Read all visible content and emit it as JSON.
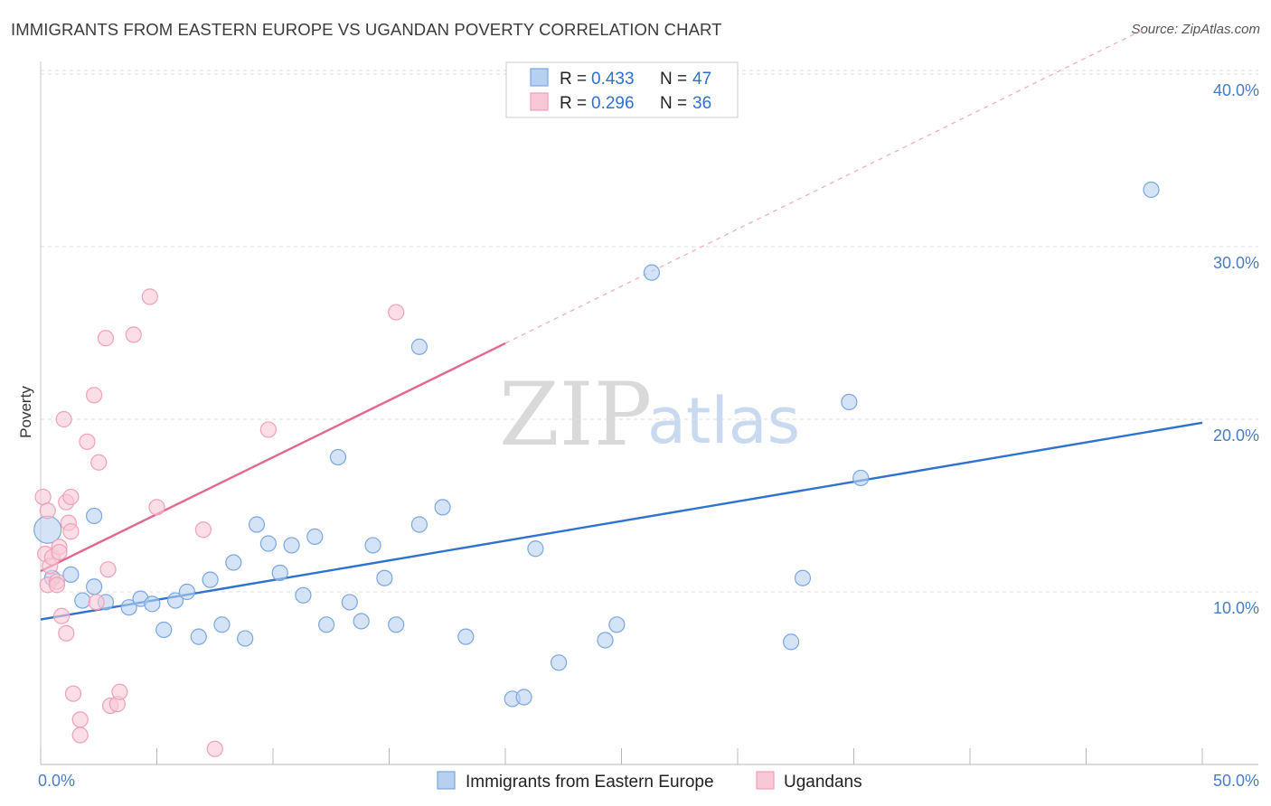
{
  "chart_data": {
    "type": "scatter",
    "title": "IMMIGRANTS FROM EASTERN EUROPE VS UGANDAN POVERTY CORRELATION CHART",
    "source": "Source: ZipAtlas.com",
    "xlabel": "",
    "ylabel": "Poverty",
    "xlim": [
      0,
      50
    ],
    "ylim": [
      0,
      42
    ],
    "x_ticks": [
      {
        "value": 0,
        "label": "0.0%"
      },
      {
        "value": 50,
        "label": "50.0%"
      }
    ],
    "y_ticks": [
      {
        "value": 10,
        "label": "10.0%"
      },
      {
        "value": 20,
        "label": "20.0%"
      },
      {
        "value": 30,
        "label": "30.0%"
      },
      {
        "value": 40,
        "label": "40.0%"
      }
    ],
    "watermark": {
      "part1": "ZIP",
      "part2": "atlas"
    },
    "legend": {
      "r_label": "R =",
      "n_label": "N =",
      "entries": [
        {
          "r": "0.433",
          "n": "47"
        },
        {
          "r": "0.296",
          "n": "36"
        }
      ]
    },
    "series": [
      {
        "name": "Immigrants from Eastern Europe",
        "color": "#7aa7e0",
        "fill": "#b8d0f0",
        "line_color": "#2f72d0",
        "trend": {
          "x0": 0,
          "y0": 8.4,
          "x1": 50,
          "y1": 19.8
        },
        "points": [
          [
            0.3,
            13.6
          ],
          [
            0.5,
            10.8
          ],
          [
            1.3,
            11.0
          ],
          [
            1.8,
            9.5
          ],
          [
            2.3,
            14.4
          ],
          [
            2.3,
            10.3
          ],
          [
            2.8,
            9.4
          ],
          [
            3.8,
            9.1
          ],
          [
            4.3,
            9.6
          ],
          [
            4.8,
            9.3
          ],
          [
            5.3,
            7.8
          ],
          [
            5.8,
            9.5
          ],
          [
            6.3,
            10.0
          ],
          [
            6.8,
            7.4
          ],
          [
            7.3,
            10.7
          ],
          [
            7.8,
            8.1
          ],
          [
            8.3,
            11.7
          ],
          [
            8.8,
            7.3
          ],
          [
            9.3,
            13.9
          ],
          [
            9.8,
            12.8
          ],
          [
            10.3,
            11.1
          ],
          [
            10.8,
            12.7
          ],
          [
            11.3,
            9.8
          ],
          [
            11.8,
            13.2
          ],
          [
            12.3,
            8.1
          ],
          [
            12.8,
            17.8
          ],
          [
            13.3,
            9.4
          ],
          [
            13.8,
            8.3
          ],
          [
            14.3,
            12.7
          ],
          [
            14.8,
            10.8
          ],
          [
            15.3,
            8.1
          ],
          [
            16.3,
            13.9
          ],
          [
            16.3,
            24.2
          ],
          [
            17.3,
            14.9
          ],
          [
            18.3,
            7.4
          ],
          [
            20.3,
            3.8
          ],
          [
            20.8,
            3.9
          ],
          [
            21.3,
            12.5
          ],
          [
            22.3,
            5.9
          ],
          [
            24.3,
            7.2
          ],
          [
            24.8,
            8.1
          ],
          [
            26.3,
            28.5
          ],
          [
            32.3,
            7.1
          ],
          [
            32.8,
            10.8
          ],
          [
            34.8,
            21.0
          ],
          [
            35.3,
            16.6
          ],
          [
            47.8,
            33.3
          ]
        ]
      },
      {
        "name": "Ugandans",
        "color": "#f0a0b8",
        "fill": "#f8c8d6",
        "line_color": "#e26890",
        "trend": {
          "x0": 0,
          "y0": 11.2,
          "x1": 20,
          "y1": 24.4
        },
        "trend_ext": {
          "x0": 20,
          "y0": 24.4,
          "x1": 47.5,
          "y1": 42.6
        },
        "points": [
          [
            0.1,
            15.5
          ],
          [
            0.2,
            12.2
          ],
          [
            0.3,
            14.7
          ],
          [
            0.3,
            10.4
          ],
          [
            0.4,
            11.5
          ],
          [
            0.5,
            12.0
          ],
          [
            0.7,
            10.6
          ],
          [
            0.7,
            10.4
          ],
          [
            0.8,
            12.6
          ],
          [
            0.8,
            12.3
          ],
          [
            0.9,
            8.6
          ],
          [
            1.0,
            20.0
          ],
          [
            1.1,
            7.6
          ],
          [
            1.1,
            15.2
          ],
          [
            1.2,
            14.0
          ],
          [
            1.3,
            13.5
          ],
          [
            1.3,
            15.5
          ],
          [
            1.4,
            4.1
          ],
          [
            1.7,
            2.6
          ],
          [
            1.7,
            1.7
          ],
          [
            2.0,
            18.7
          ],
          [
            2.3,
            21.4
          ],
          [
            2.4,
            9.4
          ],
          [
            2.5,
            17.5
          ],
          [
            2.8,
            24.7
          ],
          [
            2.9,
            11.3
          ],
          [
            3.0,
            3.4
          ],
          [
            3.3,
            3.5
          ],
          [
            3.4,
            4.2
          ],
          [
            4.0,
            24.9
          ],
          [
            4.7,
            27.1
          ],
          [
            5.0,
            14.9
          ],
          [
            7.0,
            13.6
          ],
          [
            7.5,
            0.9
          ],
          [
            9.8,
            19.4
          ],
          [
            15.3,
            26.2
          ]
        ]
      }
    ]
  }
}
